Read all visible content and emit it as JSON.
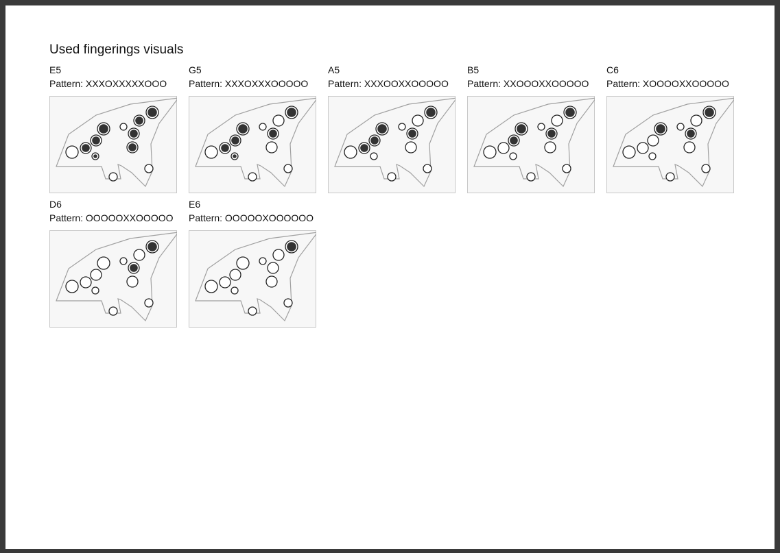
{
  "title": "Used fingerings visuals",
  "pattern_prefix": "Pattern: ",
  "colors": {
    "page": "#ffffff",
    "panel": "#f7f7f7",
    "panel_border": "#c8c8c8",
    "outline": "#a0a0a0",
    "hole_covered": "#333333",
    "hole_open": "#ffffff"
  },
  "fingerings": [
    {
      "note": "E5",
      "pattern": "XXXOXXXXXOOO"
    },
    {
      "note": "G5",
      "pattern": "XXXOXXXOOOOO"
    },
    {
      "note": "A5",
      "pattern": "XXXOOXXOOOOO"
    },
    {
      "note": "B5",
      "pattern": "XXOOOXXOOOOO"
    },
    {
      "note": "C6",
      "pattern": "XOOOOXXOOOOO"
    },
    {
      "note": "D6",
      "pattern": "OOOOOXXOOOOO"
    },
    {
      "note": "E6",
      "pattern": "OOOOOXOOOOOO"
    }
  ]
}
